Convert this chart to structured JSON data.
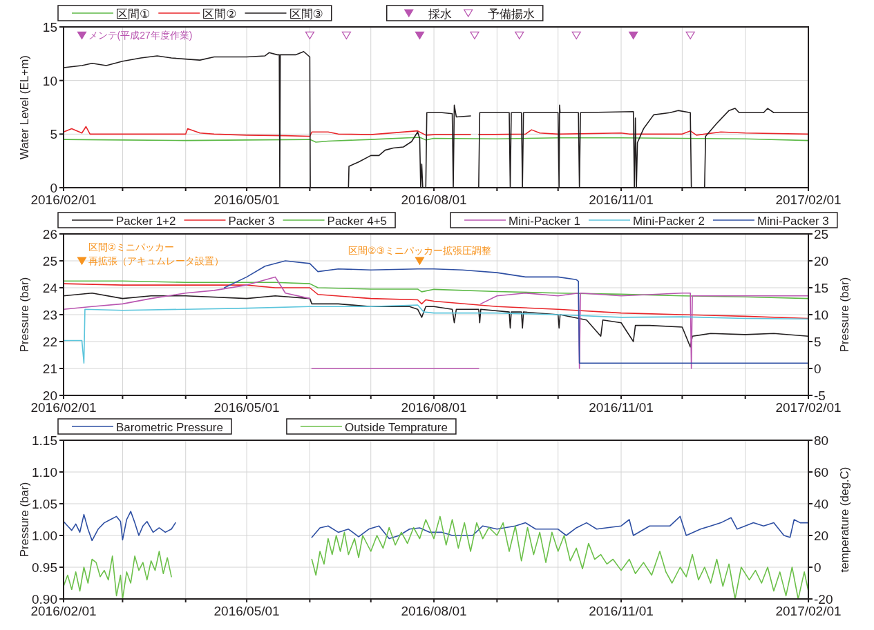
{
  "chart_data": [
    {
      "type": "line",
      "ylabel": "Water Level (EL+m)",
      "xlim": [
        "2016-02-01",
        "2017-02-01"
      ],
      "xticks": [
        {
          "value": "2016-02-01",
          "label": "2016/02/01"
        },
        {
          "value": "2016-03-01",
          "label": null
        },
        {
          "value": "2016-04-01",
          "label": null
        },
        {
          "value": "2016-05-01",
          "label": "2016/05/01"
        },
        {
          "value": "2016-06-01",
          "label": null
        },
        {
          "value": "2016-07-01",
          "label": null
        },
        {
          "value": "2016-08-01",
          "label": "2016/08/01"
        },
        {
          "value": "2016-09-01",
          "label": null
        },
        {
          "value": "2016-10-01",
          "label": null
        },
        {
          "value": "2016-11-01",
          "label": "2016/11/01"
        },
        {
          "value": "2016-12-01",
          "label": null
        },
        {
          "value": "2017-01-01",
          "label": null
        },
        {
          "value": "2017-02-01",
          "label": "2017/02/01"
        }
      ],
      "ylim": [
        0,
        15
      ],
      "yticks": [
        0,
        5,
        10,
        15
      ],
      "grid": true,
      "legend": "top",
      "annotations": [
        {
          "text": "メンテ(平成27年度作業)",
          "x": "2016-02-10",
          "y": 14.2
        }
      ],
      "series": [
        {
          "name": "区間①",
          "color": "#5cb946",
          "x": [
            "2016-02-01",
            "2016-03-01",
            "2016-04-01",
            "2016-05-01",
            "2016-06-01",
            "2016-06-04",
            "2016-06-10",
            "2016-07-01",
            "2016-07-25",
            "2016-07-28",
            "2016-08-01",
            "2016-09-01",
            "2016-10-01",
            "2016-11-01",
            "2016-12-01",
            "2017-01-01",
            "2017-02-01"
          ],
          "values": [
            4.5,
            4.45,
            4.4,
            4.45,
            4.5,
            4.25,
            4.35,
            4.5,
            4.7,
            4.45,
            4.6,
            4.55,
            4.65,
            4.65,
            4.6,
            4.55,
            4.4
          ]
        },
        {
          "name": "区間②",
          "color": "#e8262a",
          "x": [
            "2016-02-01",
            "2016-02-05",
            "2016-02-10",
            "2016-02-12",
            "2016-02-14",
            "2016-03-01",
            "2016-04-01",
            "2016-04-02",
            "2016-04-08",
            "2016-04-15",
            "2016-05-01",
            "2016-05-20",
            "2016-06-01",
            "2016-06-02",
            "2016-06-10",
            "2016-06-15",
            "2016-07-01",
            "2016-07-24",
            "2016-07-28",
            "2016-08-01",
            "2016-08-19",
            null,
            "2016-08-23",
            "2016-09-15",
            "2016-09-18",
            "2016-09-22",
            "2016-10-01",
            "2016-11-01",
            "2016-11-05",
            "2016-12-01",
            "2016-12-05",
            "2016-12-08",
            "2016-12-20",
            "2017-01-01",
            "2017-02-01"
          ],
          "values": [
            5.2,
            5.5,
            5.1,
            5.7,
            5.0,
            5.0,
            5.0,
            5.5,
            5.1,
            5.0,
            4.9,
            4.85,
            4.8,
            5.2,
            5.2,
            5.0,
            4.95,
            5.3,
            4.9,
            4.95,
            4.95,
            null,
            4.95,
            5.0,
            5.4,
            5.1,
            5.0,
            5.1,
            5.0,
            5.0,
            5.3,
            4.9,
            5.2,
            5.1,
            5.0
          ]
        },
        {
          "name": "区間③",
          "color": "#231f20",
          "x": [
            "2016-02-01",
            "2016-02-10",
            "2016-02-15",
            "2016-02-22",
            "2016-03-01",
            "2016-03-10",
            "2016-03-18",
            "2016-03-25",
            "2016-04-01",
            "2016-04-08",
            "2016-04-15",
            "2016-04-25",
            "2016-05-01",
            "2016-05-10",
            "2016-05-12",
            "2016-05-16",
            "2016-05-17",
            "2016-05-17T06:00",
            "2016-05-17T12:00",
            "2016-05-25",
            "2016-05-29",
            "2016-06-01",
            "2016-06-01T06:00",
            null,
            "2016-06-20",
            "2016-06-20T06:00",
            "2016-06-25",
            "2016-07-01",
            "2016-07-05",
            "2016-07-08",
            "2016-07-12",
            "2016-07-17",
            "2016-07-21",
            "2016-07-24",
            "2016-07-25",
            "2016-07-25T12:00",
            "2016-07-26",
            "2016-07-26T12:00",
            "2016-07-28",
            "2016-07-28T12:00",
            "2016-08-05",
            "2016-08-10",
            "2016-08-10T12:00",
            "2016-08-11",
            "2016-08-12",
            "2016-08-19",
            null,
            "2016-08-23",
            "2016-08-23T12:00",
            "2016-09-07",
            "2016-09-07T12:00",
            "2016-09-08",
            "2016-09-13",
            "2016-09-13T12:00",
            "2016-09-14",
            "2016-10-01",
            "2016-10-01T12:00",
            "2016-10-01T18:00",
            "2016-10-02",
            "2016-10-11",
            "2016-10-11T12:00",
            "2016-10-12",
            "2016-11-07",
            "2016-11-07T12:00",
            "2016-11-08",
            "2016-11-08T12:00",
            "2016-11-09",
            "2016-11-12",
            "2016-11-17",
            "2016-11-25",
            "2016-11-29",
            "2016-12-05",
            "2016-12-05T12:00",
            null,
            "2016-12-12",
            "2016-12-12T12:00",
            "2016-12-18",
            "2016-12-24",
            "2016-12-27",
            "2016-12-29",
            "2017-01-10",
            "2017-01-12",
            "2017-01-15",
            "2017-01-25",
            "2017-02-01"
          ],
          "values": [
            11.2,
            11.4,
            11.6,
            11.4,
            11.8,
            12.1,
            12.3,
            12.1,
            12.0,
            11.9,
            12.2,
            12.2,
            12.2,
            12.3,
            12.6,
            12.4,
            12.4,
            0,
            12.4,
            12.4,
            12.7,
            12.2,
            0,
            null,
            0,
            2.0,
            2.4,
            3.0,
            3.0,
            3.5,
            3.7,
            3.8,
            4.3,
            5.2,
            4.6,
            0,
            2.2,
            0,
            0,
            7.0,
            7.0,
            6.9,
            0,
            7.7,
            6.6,
            6.7,
            null,
            0,
            7.0,
            7.0,
            0,
            7.0,
            7.0,
            0,
            7.0,
            7.0,
            0,
            7.7,
            7.0,
            7.0,
            0,
            7.0,
            7.1,
            0,
            6.5,
            0,
            4.2,
            5.5,
            6.8,
            7.0,
            7.2,
            7.0,
            0,
            null,
            0,
            4.8,
            6.0,
            7.2,
            7.4,
            7.0,
            7.0,
            7.4,
            7.0,
            7.0,
            7.0
          ]
        },
        {
          "name": "採水",
          "type": "scatter",
          "marker": "triangle",
          "color": "#b955b0",
          "x": [
            "2016-02-10",
            "2016-07-25",
            "2016-11-07"
          ],
          "values": [
            14.2,
            14.2,
            14.2
          ]
        },
        {
          "name": "予備揚水",
          "type": "scatter",
          "marker": "triangle",
          "color": "#b955b0",
          "x": [
            "2016-06-01",
            "2016-06-19",
            "2016-08-21",
            "2016-09-12",
            "2016-10-10",
            "2016-12-05"
          ],
          "values": [
            14.2,
            14.2,
            14.2,
            14.2,
            14.2,
            14.2
          ]
        }
      ]
    },
    {
      "type": "line",
      "ylabel": "Pressure (bar)",
      "y2label": "Pressure (bar)",
      "xlim": [
        "2016-02-01",
        "2017-02-01"
      ],
      "xticks": [
        {
          "value": "2016-02-01",
          "label": "2016/02/01"
        },
        {
          "value": "2016-03-01",
          "label": null
        },
        {
          "value": "2016-04-01",
          "label": null
        },
        {
          "value": "2016-05-01",
          "label": "2016/05/01"
        },
        {
          "value": "2016-06-01",
          "label": null
        },
        {
          "value": "2016-07-01",
          "label": null
        },
        {
          "value": "2016-08-01",
          "label": "2016/08/01"
        },
        {
          "value": "2016-09-01",
          "label": null
        },
        {
          "value": "2016-10-01",
          "label": null
        },
        {
          "value": "2016-11-01",
          "label": "2016/11/01"
        },
        {
          "value": "2016-12-01",
          "label": null
        },
        {
          "value": "2017-01-01",
          "label": null
        },
        {
          "value": "2017-02-01",
          "label": "2017/02/01"
        }
      ],
      "ylim": [
        20,
        26
      ],
      "yticks": [
        20,
        21,
        22,
        23,
        24,
        25,
        26
      ],
      "y2lim": [
        -5,
        25
      ],
      "y2ticks": [
        -5,
        0,
        5,
        10,
        15,
        20,
        25
      ],
      "grid": true,
      "legend": "top",
      "annotations": [
        {
          "text": "区間②ミニパッカー",
          "x": "2016-02-10",
          "y": 25.0
        },
        {
          "text": "再拡張（アキュムレータ設置）",
          "x": "2016-02-10",
          "y": 25.0
        },
        {
          "text": "区間②③ミニパッカー拡張圧調整",
          "x": "2016-07-25",
          "y": 25.0
        }
      ],
      "series": [
        {
          "name": "Packer 1+2",
          "color": "#231f20",
          "x": [
            "2016-02-01",
            "2016-02-15",
            "2016-03-01",
            "2016-03-15",
            "2016-04-01",
            "2016-05-01",
            "2016-05-15",
            "2016-06-01",
            "2016-06-02",
            "2016-06-15",
            "2016-07-01",
            "2016-07-20",
            "2016-07-24",
            "2016-07-26",
            "2016-07-28",
            "2016-08-01",
            "2016-08-10",
            "2016-08-11",
            "2016-08-12",
            "2016-08-23",
            "2016-08-23T12:00",
            "2016-08-24",
            "2016-09-07",
            "2016-09-07T12:00",
            "2016-09-08",
            "2016-09-13",
            "2016-09-13T12:00",
            "2016-09-14",
            "2016-10-01",
            "2016-10-01T12:00",
            "2016-10-02",
            "2016-10-15",
            "2016-10-22",
            "2016-10-23",
            "2016-11-01",
            "2016-11-07",
            "2016-11-08",
            "2016-11-15",
            "2016-12-01",
            "2016-12-05",
            "2016-12-06",
            "2016-12-15",
            "2017-01-01",
            "2017-01-15",
            "2017-02-01"
          ],
          "values": [
            23.7,
            23.8,
            23.6,
            23.7,
            23.7,
            23.6,
            23.7,
            23.6,
            23.4,
            23.4,
            23.3,
            23.3,
            23.2,
            22.9,
            23.3,
            23.3,
            23.2,
            22.7,
            23.2,
            23.2,
            22.7,
            23.2,
            23.1,
            22.5,
            23.1,
            23.1,
            22.5,
            23.1,
            23.0,
            22.5,
            23.0,
            22.8,
            22.2,
            22.8,
            22.7,
            22.0,
            22.6,
            22.6,
            22.54,
            21.8,
            22.2,
            22.3,
            22.26,
            22.3,
            22.2
          ]
        },
        {
          "name": "Packer 3",
          "color": "#e8262a",
          "x": [
            "2016-02-01",
            "2016-03-01",
            "2016-04-01",
            "2016-05-01",
            "2016-05-15",
            "2016-06-01",
            "2016-06-05",
            "2016-07-01",
            "2016-07-24",
            "2016-07-26",
            "2016-07-28",
            "2016-08-01",
            "2016-09-01",
            "2016-10-01",
            "2016-11-01",
            "2016-12-01",
            "2017-01-01",
            "2017-02-01"
          ],
          "values": [
            24.15,
            24.1,
            24.1,
            24.1,
            24.0,
            24.0,
            23.75,
            23.6,
            23.55,
            23.4,
            23.55,
            23.5,
            23.3,
            23.2,
            23.06,
            23.0,
            22.94,
            22.86
          ]
        },
        {
          "name": "Packer 4+5",
          "color": "#5cb946",
          "x": [
            "2016-02-01",
            "2016-03-01",
            "2016-04-01",
            "2016-05-01",
            "2016-05-15",
            "2016-06-01",
            "2016-06-05",
            "2016-07-01",
            "2016-07-24",
            "2016-07-26",
            "2016-08-01",
            "2016-09-01",
            "2016-10-01",
            "2016-11-01",
            "2016-12-01",
            "2017-01-01",
            "2017-02-01"
          ],
          "values": [
            24.25,
            24.25,
            24.2,
            24.2,
            24.2,
            24.15,
            24.0,
            23.95,
            23.95,
            23.85,
            23.94,
            23.86,
            23.8,
            23.76,
            23.7,
            23.66,
            23.6
          ]
        },
        {
          "name": "Mini-Packer 1",
          "axis": "y2",
          "color": "#b955b0",
          "x": [
            "2016-02-01",
            "2016-02-15",
            "2016-03-01",
            "2016-03-15",
            "2016-04-01",
            "2016-04-15",
            "2016-05-01",
            "2016-05-15",
            "2016-05-20",
            "2016-06-01",
            null,
            "2016-06-02",
            "2016-08-23",
            null,
            "2016-08-24",
            "2016-09-01",
            "2016-09-15",
            "2016-10-01",
            "2016-10-11",
            "2016-10-11T12:00",
            "2016-10-12",
            "2016-11-01",
            "2016-12-01",
            "2016-12-05",
            "2016-12-05T12:00",
            "2016-12-06",
            "2017-01-01",
            "2017-02-01"
          ],
          "values": [
            11,
            11.5,
            12.0,
            13.0,
            14.0,
            14.5,
            15.5,
            17,
            14,
            13.0,
            null,
            0,
            0,
            null,
            12,
            13.5,
            14,
            13.5,
            14.0,
            0,
            14,
            13.5,
            14,
            14,
            0,
            13.5,
            13.5,
            13.5
          ]
        },
        {
          "name": "Mini-Packer 2",
          "axis": "y2",
          "color": "#5bc5dc",
          "x": [
            "2016-02-01",
            "2016-02-10",
            "2016-02-11",
            "2016-02-11T12:00",
            "2016-03-01",
            "2016-04-01",
            "2016-05-01",
            "2016-06-01",
            "2016-07-01",
            "2016-07-24",
            "2016-07-27",
            "2016-08-01",
            "2016-09-01",
            "2016-10-01",
            "2016-11-01",
            "2016-12-01",
            "2017-01-01",
            "2017-02-01"
          ],
          "values": [
            5.2,
            5.2,
            1.0,
            11.0,
            10.8,
            11.0,
            11.2,
            11.5,
            11.5,
            11.8,
            10.5,
            10.3,
            10.3,
            10.0,
            9.5,
            9.6,
            9.3,
            9.2
          ]
        },
        {
          "name": "Mini-Packer 3",
          "axis": "y2",
          "color": "#2e4fa3",
          "x": [
            "2016-04-20",
            "2016-05-01",
            "2016-05-10",
            "2016-05-20",
            "2016-06-01",
            "2016-06-05",
            "2016-06-15",
            "2016-07-01",
            "2016-07-24",
            "2016-08-01",
            "2016-08-15",
            "2016-09-01",
            "2016-09-15",
            "2016-10-01",
            "2016-10-10",
            "2016-10-11",
            "2016-10-11T12:00",
            "2016-11-01",
            "2017-02-01"
          ],
          "values": [
            15,
            17,
            19,
            20,
            19.5,
            18.0,
            18.5,
            18.3,
            18.5,
            18.5,
            18.3,
            17.8,
            17.0,
            17.0,
            16.5,
            16.2,
            1.0,
            1.0,
            1.0
          ]
        },
        {
          "type": "scatter",
          "marker": "triangle",
          "color": "#f7931e",
          "x": [
            "2016-02-10",
            "2016-07-25"
          ],
          "values": [
            25.0,
            25.0
          ]
        }
      ]
    },
    {
      "type": "line",
      "ylabel": "Pressure (bar)",
      "y2label": "temperature (deg.C)",
      "xlim": [
        "2016-02-01",
        "2017-02-01"
      ],
      "xticks": [
        {
          "value": "2016-02-01",
          "label": "2016/02/01"
        },
        {
          "value": "2016-03-01",
          "label": null
        },
        {
          "value": "2016-04-01",
          "label": null
        },
        {
          "value": "2016-05-01",
          "label": "2016/05/01"
        },
        {
          "value": "2016-06-01",
          "label": null
        },
        {
          "value": "2016-07-01",
          "label": null
        },
        {
          "value": "2016-08-01",
          "label": "2016/08/01"
        },
        {
          "value": "2016-09-01",
          "label": null
        },
        {
          "value": "2016-10-01",
          "label": null
        },
        {
          "value": "2016-11-01",
          "label": "2016/11/01"
        },
        {
          "value": "2016-12-01",
          "label": null
        },
        {
          "value": "2017-01-01",
          "label": null
        },
        {
          "value": "2017-02-01",
          "label": "2017/02/01"
        }
      ],
      "ylim": [
        0.9,
        1.15
      ],
      "yticks": [
        {
          "value": 0.9,
          "label": "0.90"
        },
        0.95,
        {
          "value": 1.0,
          "label": "1.00"
        },
        1.05,
        {
          "value": 1.1,
          "label": "1.10"
        },
        1.15
      ],
      "y2lim": [
        -20,
        80
      ],
      "y2ticks": [
        -20,
        0,
        20,
        40,
        60,
        80
      ],
      "grid": true,
      "legend": "top",
      "series": [
        {
          "name": "Barometric Pressure",
          "color": "#2e4fa3",
          "x": [
            "2016-02-01",
            "2016-02-03",
            "2016-02-05",
            "2016-02-07",
            "2016-02-09",
            "2016-02-11",
            "2016-02-13",
            "2016-02-15",
            "2016-02-18",
            "2016-02-21",
            "2016-02-24",
            "2016-02-27",
            "2016-02-29",
            "2016-03-01",
            "2016-03-03",
            "2016-03-05",
            "2016-03-07",
            "2016-03-09",
            "2016-03-11",
            "2016-03-13",
            "2016-03-16",
            "2016-03-19",
            "2016-03-22",
            "2016-03-25",
            "2016-03-27",
            null,
            "2016-06-02",
            "2016-06-06",
            "2016-06-10",
            "2016-06-15",
            "2016-06-20",
            "2016-06-25",
            "2016-06-30",
            "2016-07-05",
            "2016-07-10",
            "2016-07-15",
            "2016-07-20",
            "2016-07-25",
            "2016-07-30",
            "2016-08-05",
            "2016-08-10",
            "2016-08-15",
            "2016-08-20",
            "2016-08-25",
            "2016-09-01",
            "2016-09-10",
            "2016-09-15",
            "2016-09-20",
            "2016-10-01",
            "2016-10-05",
            "2016-10-10",
            "2016-10-15",
            "2016-10-20",
            "2016-11-01",
            "2016-11-05",
            "2016-11-07",
            "2016-11-15",
            "2016-11-25",
            "2016-11-30",
            "2016-12-03",
            "2016-12-10",
            "2016-12-15",
            "2016-12-20",
            "2016-12-25",
            "2016-12-28",
            "2017-01-05",
            "2017-01-10",
            "2017-01-15",
            "2017-01-20",
            "2017-01-23",
            "2017-01-25",
            "2017-01-28",
            "2017-02-01"
          ],
          "values": [
            1.022,
            1.015,
            1.008,
            1.018,
            1.005,
            1.033,
            1.01,
            0.992,
            1.01,
            1.02,
            1.025,
            1.03,
            1.022,
            0.993,
            1.025,
            1.038,
            1.02,
            1.0,
            1.015,
            1.022,
            1.005,
            1.012,
            1.005,
            1.01,
            1.02,
            null,
            0.997,
            1.012,
            1.015,
            1.005,
            1.01,
            0.998,
            1.01,
            1.015,
            0.995,
            1.0,
            1.01,
            1.012,
            1.005,
            1.005,
            1.0,
            1.0,
            1.0,
            1.015,
            1.01,
            1.015,
            1.02,
            1.01,
            1.01,
            1.0,
            1.012,
            1.02,
            1.01,
            1.015,
            1.025,
            1.0,
            1.015,
            1.015,
            1.03,
            1.0,
            1.01,
            1.015,
            1.02,
            1.028,
            1.01,
            1.02,
            1.015,
            1.02,
            1.0,
            0.997,
            1.025,
            1.02,
            1.02
          ]
        },
        {
          "name": "Outside Temprature",
          "axis": "y2",
          "color": "#6cc04a",
          "x": [
            "2016-02-01",
            "2016-02-03",
            "2016-02-05",
            "2016-02-07",
            "2016-02-09",
            "2016-02-11",
            "2016-02-13",
            "2016-02-15",
            "2016-02-17",
            "2016-02-19",
            "2016-02-21",
            "2016-02-23",
            "2016-02-25",
            "2016-02-27",
            "2016-02-29",
            "2016-03-01",
            "2016-03-03",
            "2016-03-05",
            "2016-03-07",
            "2016-03-09",
            "2016-03-11",
            "2016-03-13",
            "2016-03-15",
            "2016-03-17",
            "2016-03-19",
            "2016-03-21",
            "2016-03-23",
            "2016-03-25",
            null,
            "2016-06-02",
            "2016-06-04",
            "2016-06-06",
            "2016-06-08",
            "2016-06-10",
            "2016-06-12",
            "2016-06-14",
            "2016-06-16",
            "2016-06-18",
            "2016-06-20",
            "2016-06-23",
            "2016-06-25",
            "2016-06-27",
            "2016-07-01",
            "2016-07-04",
            "2016-07-07",
            "2016-07-10",
            "2016-07-13",
            "2016-07-16",
            "2016-07-19",
            "2016-07-22",
            "2016-07-25",
            "2016-07-28",
            "2016-08-01",
            "2016-08-04",
            "2016-08-07",
            "2016-08-10",
            "2016-08-13",
            "2016-08-16",
            "2016-08-19",
            "2016-08-22",
            "2016-08-25",
            "2016-08-28",
            "2016-09-01",
            "2016-09-04",
            "2016-09-07",
            "2016-09-10",
            "2016-09-13",
            "2016-09-16",
            "2016-09-19",
            "2016-09-22",
            "2016-09-25",
            "2016-09-28",
            "2016-10-01",
            "2016-10-04",
            "2016-10-07",
            "2016-10-10",
            "2016-10-13",
            "2016-10-16",
            "2016-10-19",
            "2016-10-22",
            "2016-10-25",
            "2016-10-28",
            "2016-11-01",
            "2016-11-05",
            "2016-11-08",
            "2016-11-12",
            "2016-11-16",
            "2016-11-20",
            "2016-11-23",
            "2016-11-26",
            "2016-11-30",
            "2016-12-03",
            "2016-12-06",
            "2016-12-09",
            "2016-12-12",
            "2016-12-15",
            "2016-12-18",
            "2016-12-21",
            "2016-12-24",
            "2016-12-27",
            "2016-12-30",
            "2017-01-03",
            "2017-01-06",
            "2017-01-09",
            "2017-01-12",
            "2017-01-15",
            "2017-01-18",
            "2017-01-21",
            "2017-01-24",
            "2017-01-27",
            "2017-01-30",
            "2017-02-01"
          ],
          "values": [
            -12,
            -5,
            -14,
            -3,
            -15,
            0,
            -10,
            5,
            3,
            -6,
            -2,
            -8,
            7,
            -18,
            -5,
            -20,
            -3,
            -10,
            7,
            -2,
            3,
            -8,
            4,
            -2,
            10,
            -4,
            6,
            -6,
            null,
            5,
            -5,
            10,
            2,
            18,
            8,
            20,
            10,
            22,
            8,
            18,
            6,
            20,
            10,
            20,
            12,
            25,
            14,
            22,
            15,
            25,
            18,
            30,
            18,
            32,
            14,
            30,
            12,
            28,
            10,
            28,
            18,
            25,
            20,
            28,
            10,
            26,
            4,
            25,
            8,
            22,
            3,
            22,
            10,
            20,
            4,
            12,
            -1,
            15,
            5,
            8,
            2,
            5,
            -2,
            5,
            -4,
            3,
            -5,
            10,
            -3,
            -10,
            0,
            -6,
            8,
            -8,
            0,
            -10,
            5,
            -12,
            2,
            -20,
            0,
            -8,
            -2,
            -10,
            0,
            -15,
            -3,
            -18,
            0,
            -20,
            -3,
            -15
          ]
        }
      ]
    }
  ]
}
